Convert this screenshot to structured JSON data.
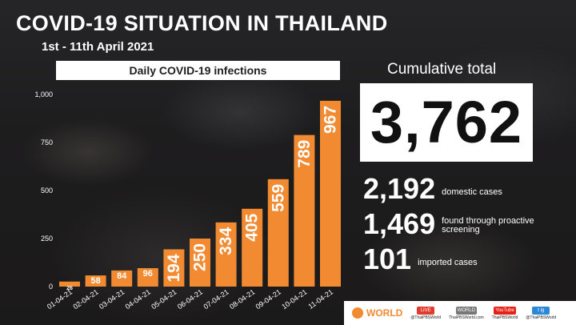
{
  "header": {
    "title": "COVID-19 SITUATION IN THAILAND",
    "subtitle": "1st - 11th April 2021"
  },
  "summary": {
    "cumulative_label": "Cumulative total",
    "cumulative_value": "3,762",
    "stats": [
      {
        "value": "2,192",
        "label": "domestic cases"
      },
      {
        "value": "1,469",
        "label": "found through proactive\nscreening"
      },
      {
        "value": "101",
        "label": "imported cases"
      }
    ]
  },
  "footer": {
    "brand": "WORLD",
    "socials": [
      {
        "name": "facebook-live",
        "badge": "LIVE",
        "handle": "@ThaiPBSWorld"
      },
      {
        "name": "website",
        "badge": "WORLD",
        "handle": "ThaiPBSWorld.com"
      },
      {
        "name": "youtube",
        "badge": "YouTube",
        "handle": "ThaiPBSWorld"
      },
      {
        "name": "twitter-instagram",
        "badge": "t ig",
        "handle": "@ThaiPBSWorld"
      }
    ]
  },
  "colors": {
    "bar": "#f28a31",
    "accent": "#f28a31",
    "panel": "#ffffff"
  },
  "chart_data": {
    "type": "bar",
    "title": "Daily COVID-19 infections",
    "categories": [
      "01-04-21",
      "02-04-21",
      "03-04-21",
      "04-04-21",
      "05-04-21",
      "06-04-21",
      "07-04-21",
      "08-04-21",
      "09-04-21",
      "10-04-21",
      "11-04-21"
    ],
    "values": [
      26,
      58,
      84,
      96,
      194,
      250,
      334,
      405,
      559,
      789,
      967
    ],
    "value_labels": [
      "26",
      "58",
      "84",
      "96",
      "194",
      "250",
      "334",
      "405",
      "559",
      "789",
      "967"
    ],
    "yticks": [
      "0",
      "250",
      "500",
      "750",
      "1,000"
    ],
    "ytick_values": [
      0,
      250,
      500,
      750,
      1000
    ],
    "ylim": [
      0,
      1000
    ],
    "grid": false,
    "xlabel": "",
    "ylabel": ""
  }
}
